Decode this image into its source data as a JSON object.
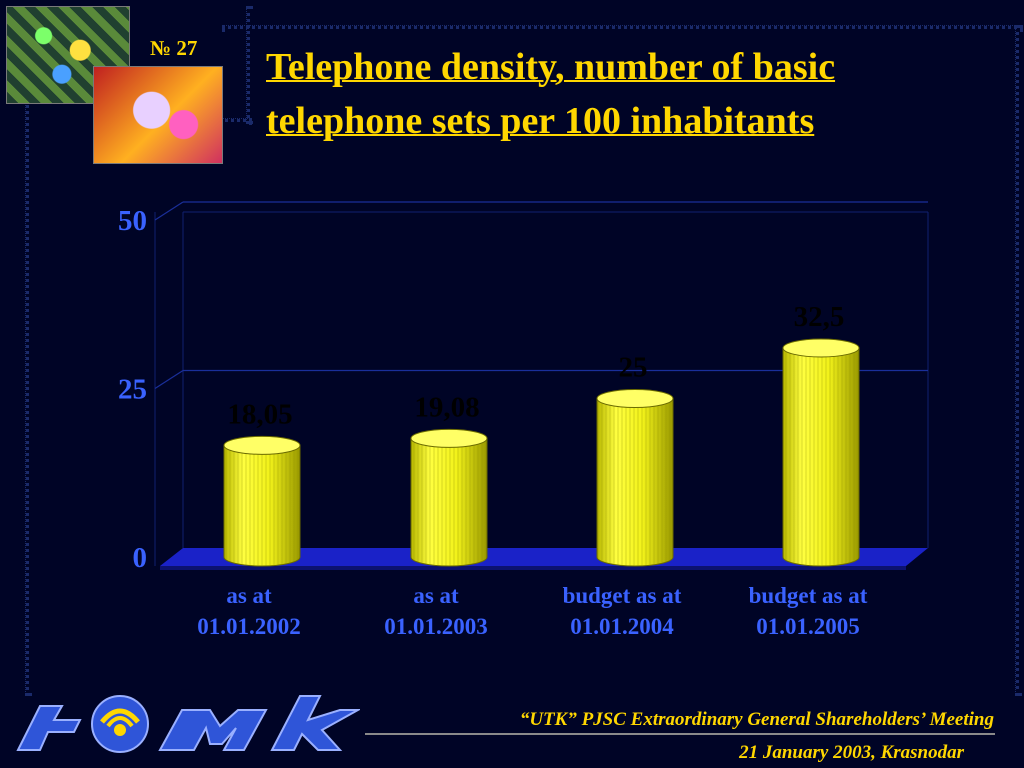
{
  "slide": {
    "number": "№ 27",
    "title": "Telephone density, number of basic telephone sets per 100 inhabitants"
  },
  "colors": {
    "background": "#000426",
    "title": "#ffd700",
    "axis_text": "#3a62ff",
    "bar": "#ffff33",
    "floor": "#1a22c8"
  },
  "chart_data": {
    "type": "bar",
    "style": "3d-cylinder",
    "categories": [
      "as at 01.01.2002",
      "as at 01.01.2003",
      "budget as at 01.01.2004",
      "budget as at 01.01.2005"
    ],
    "category_lines": [
      [
        "as at",
        "01.01.2002"
      ],
      [
        "as at",
        "01.01.2003"
      ],
      [
        "budget as at",
        "01.01.2004"
      ],
      [
        "budget as at",
        "01.01.2005"
      ]
    ],
    "values": [
      18.05,
      19.08,
      25,
      32.5
    ],
    "value_labels": [
      "18,05",
      "19,08",
      "25",
      "32,5"
    ],
    "ylim": [
      0,
      50
    ],
    "yticks": [
      0,
      25,
      50
    ],
    "ytick_labels": [
      "0",
      "25",
      "50"
    ],
    "grid": true,
    "legend": "none",
    "title": "",
    "xlabel": "",
    "ylabel": ""
  },
  "footer": {
    "logo_icon": "utk-logo",
    "line1": "“UTK” PJSC Extraordinary General Shareholders’ Meeting",
    "line2": "21 January 2003, Krasnodar"
  }
}
